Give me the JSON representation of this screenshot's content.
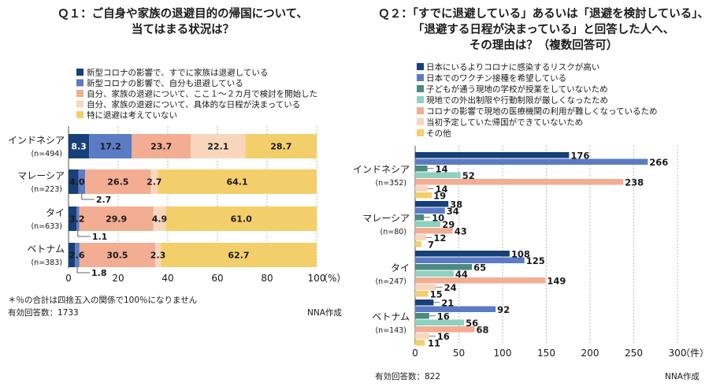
{
  "left": {
    "title_line1": "Ｑ１：ご自身や家族の退避目的の帰国について、",
    "title_line2": "当てはまる状況は？",
    "legend": [
      {
        "label": "新型コロナの影響で、すでに家族は退避している",
        "color": "#173f78"
      },
      {
        "label": "新型コロナの影響で、自分も退避している",
        "color": "#5b7cc4"
      },
      {
        "label": "自分、家族の退避について、ここ１～２カ月で検討を開始した",
        "color": "#f2ad92"
      },
      {
        "label": "自分、家族の退避について、具体的な日程が決まっている",
        "color": "#f8d6bd"
      },
      {
        "label": "特に退避は考えていない",
        "color": "#f3cf6b"
      }
    ],
    "unit": "（%）",
    "note1": "＊％の合計は四捨五入の関係で100％になりません",
    "note2": "有効回答数：1733",
    "credit": "NNA作成"
  },
  "right": {
    "title_line1": "Ｑ２：「すでに退避している」あるいは「退避を検討している」、",
    "title_line2": "「退避する日程が決まっている」と回答した人へ、",
    "title_line3": "その理由は？（複数回答可）",
    "legend": [
      {
        "label": "日本にいるよりコロナに感染するリスクが高い",
        "color": "#173f78"
      },
      {
        "label": "日本でのワクチン接種を希望している",
        "color": "#5b7cc4"
      },
      {
        "label": "子どもが通う現地の学校が授業をしていないため",
        "color": "#4b8a80"
      },
      {
        "label": "現地での外出制限や行動制限が厳しくなったため",
        "color": "#8fd0c0"
      },
      {
        "label": "コロナの影響で現地の医療機関の利用が難しくなっているため",
        "color": "#f2ad92"
      },
      {
        "label": "当初予定していた帰国ができていないため",
        "color": "#f8d6bd"
      },
      {
        "label": "その他",
        "color": "#f3cf6b"
      }
    ],
    "unit": "（件）",
    "note": "有効回答数：822",
    "credit": "NNA作成"
  },
  "chart_data": [
    {
      "type": "bar",
      "orientation": "horizontal",
      "stacked": true,
      "title": "Ｑ１：ご自身や家族の退避目的の帰国について、当てはまる状況は？",
      "categories": [
        "インドネシア",
        "マレーシア",
        "タイ",
        "ベトナム"
      ],
      "category_n": [
        "(n=494)",
        "(n=223)",
        "(n=633)",
        "(n=383)"
      ],
      "series": [
        {
          "name": "新型コロナの影響で、すでに家族は退避している",
          "values": [
            8.3,
            4.0,
            3.2,
            2.6
          ]
        },
        {
          "name": "新型コロナの影響で、自分も退避している",
          "values": [
            17.2,
            2.7,
            1.1,
            1.8
          ]
        },
        {
          "name": "自分、家族の退避について、ここ１～２カ月で検討を開始した",
          "values": [
            23.7,
            26.5,
            29.9,
            30.5
          ]
        },
        {
          "name": "自分、家族の退避について、具体的な日程が決まっている",
          "values": [
            22.1,
            2.7,
            4.9,
            2.3
          ]
        },
        {
          "name": "特に退避は考えていない",
          "values": [
            28.7,
            64.1,
            61.0,
            62.7
          ]
        }
      ],
      "xlim": [
        0,
        100
      ],
      "xticks": [
        0,
        20,
        40,
        60,
        80,
        100
      ],
      "xlabel": "（%）",
      "legend": "top"
    },
    {
      "type": "bar",
      "orientation": "horizontal",
      "stacked": false,
      "title": "Ｑ２：「すでに退避している」あるいは「退避を検討している」、「退避する日程が決まっている」と回答した人へ、その理由は？（複数回答可）",
      "categories": [
        "インドネシア",
        "マレーシア",
        "タイ",
        "ベトナム"
      ],
      "category_n": [
        "(n=352)",
        "(n=80)",
        "(n=247)",
        "(n=143)"
      ],
      "series": [
        {
          "name": "日本にいるよりコロナに感染するリスクが高い",
          "values": [
            176,
            38,
            108,
            21
          ]
        },
        {
          "name": "日本でのワクチン接種を希望している",
          "values": [
            266,
            34,
            125,
            92
          ]
        },
        {
          "name": "子どもが通う現地の学校が授業をしていないため",
          "values": [
            14,
            10,
            65,
            16
          ]
        },
        {
          "name": "現地での外出制限や行動制限が厳しくなったため",
          "values": [
            52,
            29,
            44,
            56
          ]
        },
        {
          "name": "コロナの影響で現地の医療機関の利用が難しくなっているため",
          "values": [
            238,
            43,
            149,
            68
          ]
        },
        {
          "name": "当初予定していた帰国ができていないため",
          "values": [
            14,
            12,
            24,
            16
          ]
        },
        {
          "name": "その他",
          "values": [
            19,
            7,
            15,
            11
          ]
        }
      ],
      "xlim": [
        0,
        300
      ],
      "xticks": [
        0,
        50,
        100,
        150,
        200,
        250,
        300
      ],
      "xlabel": "（件）",
      "legend": "top"
    }
  ]
}
